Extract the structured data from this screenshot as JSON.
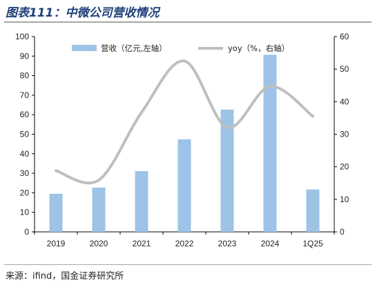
{
  "title": "图表111：中微公司营收情况",
  "source": "来源：ifind，国金证券研究所",
  "chart_data": {
    "type": "bar+line",
    "categories": [
      "2019",
      "2020",
      "2021",
      "2022",
      "2023",
      "2024",
      "1Q25"
    ],
    "series": [
      {
        "name": "营收（亿元,左轴）",
        "type": "bar",
        "axis": "left",
        "color": "#9dc3e6",
        "values": [
          19.5,
          22.7,
          31.1,
          47.4,
          62.6,
          90.7,
          21.7
        ]
      },
      {
        "name": "yoy（%，右轴）",
        "type": "line",
        "axis": "right",
        "color": "#bfbfbf",
        "values": [
          18.8,
          15.9,
          36.7,
          52.5,
          32.1,
          44.7,
          35.5
        ]
      }
    ],
    "y_left": {
      "min": 0,
      "max": 100,
      "step": 10
    },
    "y_right": {
      "min": 0,
      "max": 60,
      "step": 10
    },
    "legend": "top",
    "grid": false
  }
}
